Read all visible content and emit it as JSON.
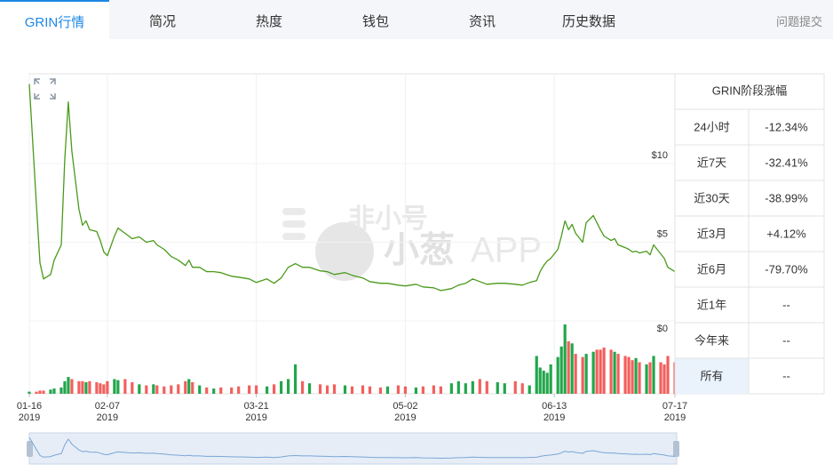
{
  "tabs": [
    "GRIN行情",
    "简况",
    "热度",
    "钱包",
    "资讯",
    "历史数据",
    "问题提交"
  ],
  "chart_data": {
    "type": "line",
    "color": "#4a9a1a",
    "x": [
      "2019-01-16",
      "2019-01-18",
      "2019-01-19",
      "2019-01-20",
      "2019-01-22",
      "2019-01-23",
      "2019-01-25",
      "2019-01-26",
      "2019-01-27",
      "2019-01-28",
      "2019-01-30",
      "2019-01-31",
      "2019-02-01",
      "2019-02-02",
      "2019-02-04",
      "2019-02-05",
      "2019-02-06",
      "2019-02-07",
      "2019-02-09",
      "2019-02-10",
      "2019-02-12",
      "2019-02-14",
      "2019-02-16",
      "2019-02-18",
      "2019-02-20",
      "2019-02-21",
      "2019-02-23",
      "2019-02-25",
      "2019-02-27",
      "2019-03-01",
      "2019-03-02",
      "2019-03-03",
      "2019-03-05",
      "2019-03-07",
      "2019-03-09",
      "2019-03-11",
      "2019-03-14",
      "2019-03-16",
      "2019-03-19",
      "2019-03-21",
      "2019-03-24",
      "2019-03-26",
      "2019-03-28",
      "2019-03-30",
      "2019-04-01",
      "2019-04-03",
      "2019-04-05",
      "2019-04-08",
      "2019-04-10",
      "2019-04-12",
      "2019-04-15",
      "2019-04-17",
      "2019-04-20",
      "2019-04-22",
      "2019-04-25",
      "2019-04-27",
      "2019-04-30",
      "2019-05-02",
      "2019-05-05",
      "2019-05-07",
      "2019-05-10",
      "2019-05-12",
      "2019-05-15",
      "2019-05-17",
      "2019-05-19",
      "2019-05-21",
      "2019-05-23",
      "2019-05-25",
      "2019-05-28",
      "2019-05-30",
      "2019-06-02",
      "2019-06-04",
      "2019-06-06",
      "2019-06-08",
      "2019-06-09",
      "2019-06-10",
      "2019-06-11",
      "2019-06-12",
      "2019-06-14",
      "2019-06-15",
      "2019-06-16",
      "2019-06-17",
      "2019-06-18",
      "2019-06-19",
      "2019-06-21",
      "2019-06-22",
      "2019-06-24",
      "2019-06-25",
      "2019-06-26",
      "2019-06-27",
      "2019-06-29",
      "2019-06-30",
      "2019-07-01",
      "2019-07-03",
      "2019-07-04",
      "2019-07-05",
      "2019-07-06",
      "2019-07-07",
      "2019-07-09",
      "2019-07-10",
      "2019-07-11",
      "2019-07-13",
      "2019-07-14",
      "2019-07-15",
      "2019-07-17"
    ],
    "values": [
      15.06,
      7.39,
      3.69,
      2.67,
      2.95,
      3.86,
      4.83,
      10.23,
      13.92,
      10.8,
      7.1,
      6.08,
      6.36,
      5.8,
      5.68,
      5.11,
      4.38,
      4.15,
      5.4,
      5.9,
      5.57,
      5.23,
      5.34,
      5.0,
      5.11,
      4.83,
      4.55,
      4.09,
      3.86,
      3.52,
      3.86,
      3.41,
      3.41,
      3.13,
      3.13,
      3.07,
      2.84,
      2.78,
      2.67,
      2.44,
      2.67,
      2.39,
      2.73,
      3.41,
      3.64,
      3.41,
      3.41,
      3.18,
      3.13,
      2.95,
      3.07,
      2.9,
      2.73,
      2.5,
      2.39,
      2.39,
      2.27,
      2.22,
      2.33,
      2.16,
      2.1,
      1.93,
      2.05,
      2.27,
      2.39,
      2.67,
      2.5,
      2.33,
      2.39,
      2.39,
      2.33,
      2.27,
      2.44,
      2.56,
      3.13,
      3.52,
      3.81,
      3.98,
      4.55,
      5.4,
      6.36,
      5.8,
      6.14,
      5.57,
      5.0,
      6.25,
      6.7,
      6.25,
      5.8,
      5.4,
      5.11,
      5.23,
      4.83,
      4.66,
      4.55,
      4.38,
      4.43,
      4.32,
      4.43,
      4.2,
      4.83,
      4.26,
      3.98,
      3.41,
      3.13
    ],
    "volume": [
      2,
      2,
      3,
      3,
      4,
      5,
      6,
      12,
      16,
      14,
      12,
      12,
      11,
      12,
      11,
      10,
      9,
      12,
      14,
      13,
      14,
      11,
      9,
      8,
      9,
      8,
      7,
      8,
      9,
      12,
      14,
      11,
      8,
      6,
      5,
      6,
      6,
      7,
      8,
      8,
      7,
      9,
      12,
      14,
      28,
      12,
      10,
      9,
      8,
      9,
      8,
      7,
      8,
      7,
      6,
      7,
      8,
      7,
      6,
      7,
      8,
      7,
      10,
      12,
      10,
      12,
      14,
      12,
      11,
      10,
      12,
      10,
      8,
      36,
      25,
      22,
      20,
      28,
      35,
      45,
      66,
      50,
      48,
      38,
      35,
      38,
      40,
      42,
      42,
      44,
      42,
      40,
      38,
      36,
      35,
      32,
      34,
      30,
      28,
      30,
      36,
      30,
      28,
      36,
      30
    ],
    "volume_colors": {
      "up": "#22a64b",
      "down": "#f2605d"
    },
    "xlim": [
      "2019-01-16",
      "2019-07-17"
    ],
    "ylim": [
      0,
      15.6
    ],
    "yticks": [
      {
        "value": 0,
        "label": "$0"
      },
      {
        "value": 5,
        "label": "$5"
      },
      {
        "value": 10,
        "label": "$10"
      }
    ],
    "xticks": [
      {
        "value": "2019-01-16",
        "label": "01-16",
        "year": "2019"
      },
      {
        "value": "2019-02-07",
        "label": "02-07",
        "year": "2019"
      },
      {
        "value": "2019-03-21",
        "label": "03-21",
        "year": "2019"
      },
      {
        "value": "2019-05-02",
        "label": "05-02",
        "year": "2019"
      },
      {
        "value": "2019-06-13",
        "label": "06-13",
        "year": "2019"
      },
      {
        "value": "2019-07-17",
        "label": "07-17",
        "year": "2019"
      }
    ],
    "grid": true
  },
  "watermark": {
    "brand": "非小号",
    "app": "小葱",
    "suffix": "APP"
  },
  "performance": {
    "title": "GRIN阶段涨幅",
    "rows": [
      [
        "24小时",
        "-12.34%"
      ],
      [
        "近7天",
        "-32.41%"
      ],
      [
        "近30天",
        "-38.99%"
      ],
      [
        "近3月",
        "+4.12%"
      ],
      [
        "近6月",
        "-79.70%"
      ],
      [
        "近1年",
        "--"
      ],
      [
        "今年来",
        "--"
      ],
      [
        "所有",
        "--"
      ]
    ]
  }
}
